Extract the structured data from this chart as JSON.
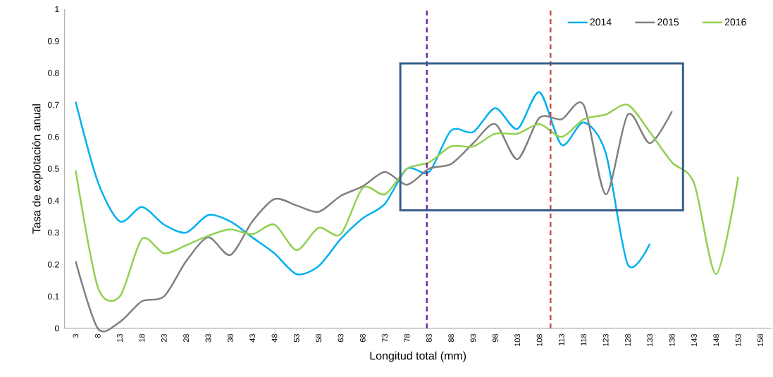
{
  "chart_data": {
    "type": "line",
    "xlabel": "Longitud total (mm)",
    "ylabel": "Tasa de explotación anual",
    "x": [
      3,
      8,
      13,
      18,
      23,
      28,
      33,
      38,
      43,
      48,
      53,
      58,
      63,
      68,
      73,
      78,
      83,
      88,
      93,
      98,
      103,
      108,
      113,
      118,
      123,
      128,
      133,
      138,
      143,
      148,
      153
    ],
    "xlim": [
      0.5,
      160.5
    ],
    "xticks": [
      3,
      8,
      13,
      18,
      23,
      28,
      33,
      38,
      43,
      48,
      53,
      58,
      63,
      68,
      73,
      78,
      83,
      88,
      93,
      98,
      103,
      108,
      113,
      118,
      123,
      128,
      133,
      138,
      143,
      148,
      153,
      158
    ],
    "ylim": [
      0,
      1
    ],
    "yticks": [
      0,
      0.1,
      0.2,
      0.3,
      0.4,
      0.5,
      0.6,
      0.7,
      0.8,
      0.9,
      1
    ],
    "series": [
      {
        "name": "2014",
        "color": "#00b0f0",
        "values": [
          0.71,
          0.46,
          0.335,
          0.38,
          0.325,
          0.3,
          0.355,
          0.335,
          0.285,
          0.235,
          0.17,
          0.195,
          0.28,
          0.345,
          0.39,
          0.5,
          0.49,
          0.62,
          0.615,
          0.69,
          0.625,
          0.74,
          0.575,
          0.645,
          0.55,
          0.2,
          0.265,
          null,
          null,
          null,
          null
        ]
      },
      {
        "name": "2015",
        "color": "#808080",
        "values": [
          0.21,
          0,
          0.02,
          0.085,
          0.1,
          0.21,
          0.285,
          0.23,
          0.335,
          0.405,
          0.385,
          0.365,
          0.415,
          0.445,
          0.49,
          0.45,
          0.5,
          0.515,
          0.58,
          0.64,
          0.53,
          0.66,
          0.655,
          0.7,
          0.42,
          0.67,
          0.58,
          0.68,
          null,
          null,
          null
        ]
      },
      {
        "name": "2016",
        "color": "#92d050",
        "values": [
          0.495,
          0.13,
          0.1,
          0.28,
          0.235,
          0.26,
          0.29,
          0.31,
          0.295,
          0.325,
          0.245,
          0.315,
          0.295,
          0.44,
          0.42,
          0.5,
          0.52,
          0.57,
          0.57,
          0.61,
          0.61,
          0.64,
          0.6,
          0.655,
          0.67,
          0.7,
          0.615,
          0.52,
          0.455,
          0.17,
          0.475
        ]
      }
    ],
    "ref_lines": [
      {
        "axis": "x",
        "value": 82.5,
        "color": "#7030a0",
        "line_style": "dashed"
      },
      {
        "axis": "x",
        "value": 110.5,
        "color": "#c0504d",
        "line_style": "dashed"
      }
    ],
    "grid": false,
    "legend": "top right",
    "line_style": "solid"
  }
}
